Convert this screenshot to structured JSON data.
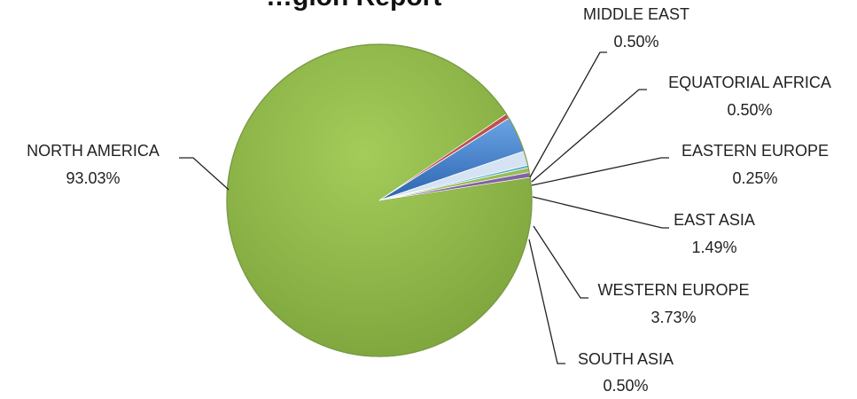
{
  "chart_data": {
    "type": "pie",
    "title": "…gion Report",
    "slices": [
      {
        "name": "NORTH AMERICA",
        "value": 93.03,
        "label": "93.03%",
        "color": "#8db645"
      },
      {
        "name": "SOUTH ASIA",
        "value": 0.5,
        "label": "0.50%",
        "color": "#c0504d"
      },
      {
        "name": "WESTERN EUROPE",
        "value": 3.73,
        "label": "3.73%",
        "color": "#4a7ebb"
      },
      {
        "name": "EAST ASIA",
        "value": 1.49,
        "label": "1.49%",
        "color": "#d5e3f2"
      },
      {
        "name": "EASTERN EUROPE",
        "value": 0.25,
        "label": "0.25%",
        "color": "#4bacc6"
      },
      {
        "name": "EQUATORIAL AFRICA",
        "value": 0.5,
        "label": "0.50%",
        "color": "#9bbb59"
      },
      {
        "name": "MIDDLE EAST",
        "value": 0.5,
        "label": "0.50%",
        "color": "#8064a2"
      }
    ]
  }
}
